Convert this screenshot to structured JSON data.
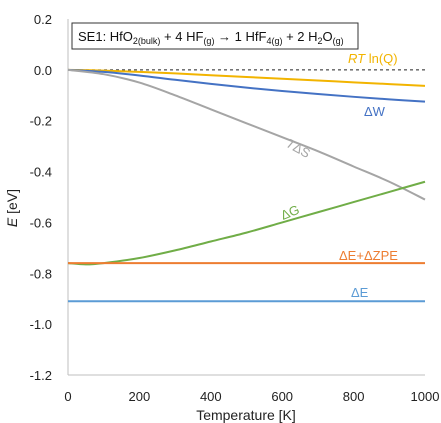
{
  "chart_data": {
    "type": "line",
    "title": {
      "prefix": "SE1:  HfO",
      "sub1": "2(bulk)",
      "part2": " + 4 HF",
      "sub2": "(g)",
      "part3": " → 1 HfF",
      "sub3": "4(g)",
      "part4": " + 2 H",
      "sub4": "2",
      "part5": "O",
      "sub5": "(g)"
    },
    "xlabel": "Temperature  [K]",
    "ylabel": {
      "italic": "E",
      "rest": " [eV]"
    },
    "xlim": [
      0,
      1000
    ],
    "ylim": [
      -1.2,
      0.2
    ],
    "xticks": [
      "0",
      "200",
      "400",
      "600",
      "800",
      "1000"
    ],
    "yticks": [
      "0.2",
      "0.0",
      "-0.2",
      "-0.4",
      "-0.6",
      "-0.8",
      "-1.0",
      "-1.2"
    ],
    "reference_line": {
      "y": 0.0,
      "style": "dashed",
      "color": "#222222"
    },
    "series": [
      {
        "name": {
          "italic": "RT",
          "rest": " ln(Q)"
        },
        "color": "#f2b400",
        "x": [
          0,
          100,
          200,
          300,
          400,
          500,
          600,
          700,
          800,
          900,
          1000
        ],
        "y": [
          0.0,
          -0.003,
          -0.008,
          -0.014,
          -0.021,
          -0.028,
          -0.035,
          -0.042,
          -0.049,
          -0.056,
          -0.063
        ]
      },
      {
        "name": {
          "italic": "",
          "rest": "ΔW"
        },
        "color": "#4472c4",
        "x": [
          0,
          100,
          200,
          300,
          400,
          500,
          600,
          700,
          800,
          900,
          1000
        ],
        "y": [
          0.0,
          -0.008,
          -0.022,
          -0.039,
          -0.055,
          -0.07,
          -0.083,
          -0.095,
          -0.106,
          -0.116,
          -0.125
        ]
      },
      {
        "name": {
          "italic": "T",
          "rest": "ΔS"
        },
        "color": "#a5a5a5",
        "x": [
          0,
          100,
          200,
          300,
          400,
          500,
          600,
          700,
          800,
          900,
          1000
        ],
        "y": [
          0.0,
          -0.017,
          -0.05,
          -0.1,
          -0.155,
          -0.21,
          -0.265,
          -0.32,
          -0.38,
          -0.44,
          -0.51
        ]
      },
      {
        "name": {
          "italic": "",
          "rest": "ΔG"
        },
        "color": "#70ad47",
        "x": [
          0,
          50,
          100,
          200,
          300,
          400,
          500,
          600,
          700,
          800,
          900,
          1000
        ],
        "y": [
          -0.76,
          -0.765,
          -0.76,
          -0.74,
          -0.71,
          -0.675,
          -0.64,
          -0.6,
          -0.56,
          -0.52,
          -0.48,
          -0.44
        ]
      },
      {
        "name": {
          "italic": "",
          "rest": "ΔE+ΔZPE"
        },
        "color": "#ed7d31",
        "x": [
          0,
          1000
        ],
        "y": [
          -0.76,
          -0.76
        ]
      },
      {
        "name": {
          "italic": "",
          "rest": "ΔE"
        },
        "color": "#5b9bd5",
        "x": [
          0,
          1000
        ],
        "y": [
          -0.91,
          -0.91
        ]
      }
    ]
  }
}
